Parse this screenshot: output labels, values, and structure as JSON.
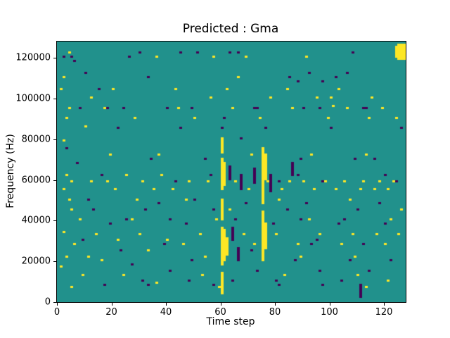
{
  "chart_data": {
    "type": "heatmap",
    "title": "Predicted : Gma",
    "xlabel": "Time step",
    "ylabel": "Frequency (Hz)",
    "xlim": [
      0,
      128
    ],
    "ylim": [
      0,
      128000
    ],
    "xticks": [
      0,
      20,
      40,
      60,
      80,
      100,
      120
    ],
    "yticks": [
      0,
      20000,
      40000,
      60000,
      80000,
      100000,
      120000
    ],
    "grid": false,
    "legend": null,
    "cell_unit_hz": 1000,
    "colors": {
      "background": "#21918c",
      "high": "#fde725",
      "low": "#440154"
    },
    "yellow_points": [
      [
        4,
        122
      ],
      [
        2,
        110
      ],
      [
        1,
        104
      ],
      [
        12,
        100
      ],
      [
        4,
        95
      ],
      [
        3,
        90
      ],
      [
        10,
        86
      ],
      [
        2,
        79
      ],
      [
        3,
        62
      ],
      [
        5,
        59
      ],
      [
        2,
        55
      ],
      [
        4,
        50
      ],
      [
        8,
        40
      ],
      [
        2,
        34
      ],
      [
        6,
        28
      ],
      [
        3,
        22
      ],
      [
        1,
        17
      ],
      [
        9,
        13
      ],
      [
        5,
        7
      ],
      [
        12,
        59
      ],
      [
        14,
        33
      ],
      [
        16,
        20
      ],
      [
        17,
        95
      ],
      [
        18,
        59
      ],
      [
        20,
        104
      ],
      [
        21,
        55
      ],
      [
        22,
        30
      ],
      [
        24,
        13
      ],
      [
        25,
        62
      ],
      [
        27,
        40
      ],
      [
        28,
        90
      ],
      [
        30,
        33
      ],
      [
        31,
        59
      ],
      [
        33,
        25
      ],
      [
        35,
        55
      ],
      [
        36,
        9
      ],
      [
        38,
        62
      ],
      [
        40,
        30
      ],
      [
        42,
        55
      ],
      [
        44,
        95
      ],
      [
        46,
        28
      ],
      [
        48,
        59
      ],
      [
        50,
        90
      ],
      [
        52,
        33
      ],
      [
        53,
        13
      ],
      [
        55,
        59
      ],
      [
        56,
        100
      ],
      [
        58,
        40
      ],
      [
        59,
        7
      ],
      [
        64,
        95
      ],
      [
        65,
        59
      ],
      [
        66,
        110
      ],
      [
        68,
        33
      ],
      [
        70,
        55
      ],
      [
        72,
        28
      ],
      [
        74,
        90
      ],
      [
        77,
        59
      ],
      [
        78,
        100
      ],
      [
        80,
        33
      ],
      [
        82,
        55
      ],
      [
        83,
        13
      ],
      [
        85,
        59
      ],
      [
        86,
        95
      ],
      [
        88,
        28
      ],
      [
        90,
        59
      ],
      [
        92,
        40
      ],
      [
        94,
        55
      ],
      [
        95,
        100
      ],
      [
        96,
        33
      ],
      [
        98,
        59
      ],
      [
        99,
        90
      ],
      [
        100,
        100
      ],
      [
        101,
        96
      ],
      [
        102,
        55
      ],
      [
        104,
        28
      ],
      [
        105,
        59
      ],
      [
        106,
        95
      ],
      [
        108,
        33
      ],
      [
        110,
        13
      ],
      [
        111,
        55
      ],
      [
        112,
        59
      ],
      [
        113,
        7
      ],
      [
        114,
        90
      ],
      [
        115,
        100
      ],
      [
        116,
        55
      ],
      [
        117,
        33
      ],
      [
        118,
        59
      ],
      [
        119,
        95
      ],
      [
        120,
        28
      ],
      [
        121,
        55
      ],
      [
        122,
        40
      ],
      [
        123,
        59
      ],
      [
        124,
        90
      ],
      [
        125,
        33
      ],
      [
        36,
        120
      ],
      [
        43,
        104
      ],
      [
        57,
        120
      ],
      [
        62,
        104
      ],
      [
        69,
        120
      ],
      [
        84,
        104
      ],
      [
        91,
        120
      ],
      [
        103,
        104
      ],
      [
        5,
        45
      ],
      [
        11,
        22
      ],
      [
        19,
        72
      ],
      [
        29,
        50
      ],
      [
        37,
        72
      ],
      [
        47,
        50
      ],
      [
        54,
        22
      ],
      [
        63,
        45
      ],
      [
        71,
        72
      ],
      [
        81,
        50
      ],
      [
        89,
        22
      ],
      [
        93,
        72
      ],
      [
        107,
        50
      ],
      [
        109,
        22
      ],
      [
        113,
        72
      ],
      [
        121,
        10
      ],
      [
        126,
        45
      ]
    ],
    "purple_points": [
      [
        6,
        118
      ],
      [
        10,
        112
      ],
      [
        15,
        104
      ],
      [
        18,
        95
      ],
      [
        22,
        85
      ],
      [
        26,
        120
      ],
      [
        30,
        122
      ],
      [
        3,
        75
      ],
      [
        7,
        68
      ],
      [
        11,
        50
      ],
      [
        13,
        45
      ],
      [
        19,
        38
      ],
      [
        23,
        25
      ],
      [
        27,
        18
      ],
      [
        31,
        10
      ],
      [
        34,
        70
      ],
      [
        37,
        48
      ],
      [
        39,
        28
      ],
      [
        41,
        15
      ],
      [
        43,
        59
      ],
      [
        45,
        85
      ],
      [
        47,
        38
      ],
      [
        49,
        20
      ],
      [
        51,
        122
      ],
      [
        54,
        70
      ],
      [
        57,
        45
      ],
      [
        61,
        90
      ],
      [
        63,
        122
      ],
      [
        66,
        122
      ],
      [
        67,
        80
      ],
      [
        69,
        48
      ],
      [
        71,
        25
      ],
      [
        73,
        15
      ],
      [
        76,
        85
      ],
      [
        79,
        38
      ],
      [
        81,
        59
      ],
      [
        84,
        45
      ],
      [
        87,
        20
      ],
      [
        89,
        70
      ],
      [
        91,
        48
      ],
      [
        93,
        28
      ],
      [
        96,
        15
      ],
      [
        97,
        59
      ],
      [
        100,
        85
      ],
      [
        103,
        38
      ],
      [
        107,
        20
      ],
      [
        108,
        122
      ],
      [
        109,
        70
      ],
      [
        110,
        45
      ],
      [
        112,
        28
      ],
      [
        114,
        15
      ],
      [
        116,
        70
      ],
      [
        118,
        48
      ],
      [
        120,
        38
      ],
      [
        122,
        20
      ],
      [
        124,
        59
      ],
      [
        126,
        85
      ],
      [
        5,
        120
      ],
      [
        45,
        122
      ],
      [
        90,
        95
      ],
      [
        95,
        30
      ],
      [
        85,
        110
      ],
      [
        88,
        108
      ],
      [
        92,
        112
      ],
      [
        97,
        108
      ],
      [
        102,
        110
      ],
      [
        106,
        112
      ],
      [
        50,
        50
      ],
      [
        60,
        85
      ],
      [
        2,
        120
      ],
      [
        8,
        95
      ],
      [
        16,
        62
      ],
      [
        24,
        95
      ],
      [
        32,
        45
      ],
      [
        40,
        95
      ],
      [
        48,
        10
      ],
      [
        56,
        62
      ],
      [
        64,
        10
      ],
      [
        72,
        95
      ],
      [
        80,
        10
      ],
      [
        88,
        62
      ],
      [
        96,
        95
      ],
      [
        104,
        10
      ],
      [
        112,
        95
      ],
      [
        120,
        62
      ],
      [
        9,
        30
      ],
      [
        17,
        8
      ],
      [
        25,
        40
      ],
      [
        33,
        8
      ],
      [
        41,
        40
      ],
      [
        49,
        95
      ],
      [
        57,
        8
      ],
      [
        65,
        40
      ],
      [
        73,
        95
      ],
      [
        81,
        8
      ],
      [
        89,
        40
      ],
      [
        97,
        8
      ],
      [
        105,
        40
      ],
      [
        113,
        95
      ],
      [
        33,
        110
      ]
    ],
    "streaks": [
      {
        "x": 60,
        "y0": 4,
        "y1": 14,
        "c": "yellow"
      },
      {
        "x": 60,
        "y0": 18,
        "y1": 36,
        "c": "yellow"
      },
      {
        "x": 61,
        "y0": 20,
        "y1": 35,
        "c": "yellow"
      },
      {
        "x": 62,
        "y0": 23,
        "y1": 31,
        "c": "yellow"
      },
      {
        "x": 60,
        "y0": 40,
        "y1": 50,
        "c": "yellow"
      },
      {
        "x": 60,
        "y0": 55,
        "y1": 70,
        "c": "yellow"
      },
      {
        "x": 61,
        "y0": 57,
        "y1": 68,
        "c": "yellow"
      },
      {
        "x": 60,
        "y0": 73,
        "y1": 80,
        "c": "yellow"
      },
      {
        "x": 75,
        "y0": 20,
        "y1": 44,
        "c": "yellow"
      },
      {
        "x": 76,
        "y0": 26,
        "y1": 38,
        "c": "yellow"
      },
      {
        "x": 75,
        "y0": 48,
        "y1": 75,
        "c": "yellow"
      },
      {
        "x": 76,
        "y0": 60,
        "y1": 72,
        "c": "yellow"
      },
      {
        "x": 124,
        "y0": 120,
        "y1": 125,
        "c": "yellow"
      },
      {
        "x": 125,
        "y0": 119,
        "y1": 126,
        "c": "yellow"
      },
      {
        "x": 126,
        "y0": 119,
        "y1": 126,
        "c": "yellow"
      },
      {
        "x": 127,
        "y0": 119,
        "y1": 126,
        "c": "yellow"
      },
      {
        "x": 64,
        "y0": 30,
        "y1": 36,
        "c": "purple"
      },
      {
        "x": 67,
        "y0": 55,
        "y1": 62,
        "c": "purple"
      },
      {
        "x": 72,
        "y0": 58,
        "y1": 65,
        "c": "purple"
      },
      {
        "x": 78,
        "y0": 54,
        "y1": 62,
        "c": "purple"
      },
      {
        "x": 63,
        "y0": 60,
        "y1": 66,
        "c": "purple"
      },
      {
        "x": 66,
        "y0": 20,
        "y1": 26,
        "c": "purple"
      },
      {
        "x": 111,
        "y0": 2,
        "y1": 8,
        "c": "purple"
      },
      {
        "x": 86,
        "y0": 62,
        "y1": 68,
        "c": "purple"
      }
    ]
  }
}
